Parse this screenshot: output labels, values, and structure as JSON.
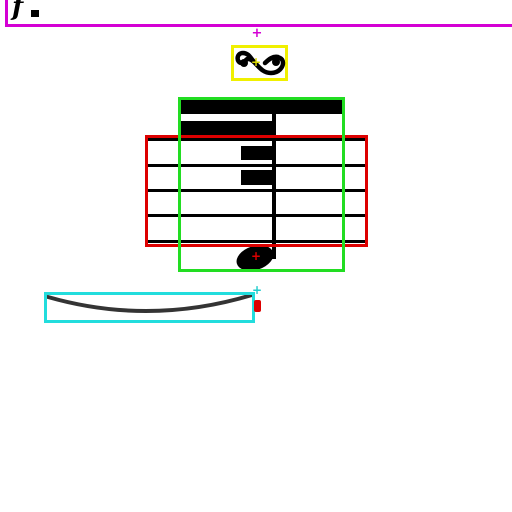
{
  "dynamic": {
    "text": "f"
  },
  "symbols": {
    "turn": "turn-ornament",
    "crosshair": "crosshair-marker"
  },
  "annotations": [
    {
      "label": "dynamic-region",
      "color": "#d400d4"
    },
    {
      "label": "turn-ornament",
      "color": "#f0f000"
    },
    {
      "label": "note-group",
      "color": "#22dd22"
    },
    {
      "label": "staff-segment",
      "color": "#dd0000"
    },
    {
      "label": "slur",
      "color": "#22dddd"
    }
  ],
  "colors": {
    "magenta": "#d400d4",
    "yellow": "#f0f000",
    "green": "#22dd22",
    "red": "#dd0000",
    "cyan": "#22dddd",
    "ink": "#000000"
  }
}
